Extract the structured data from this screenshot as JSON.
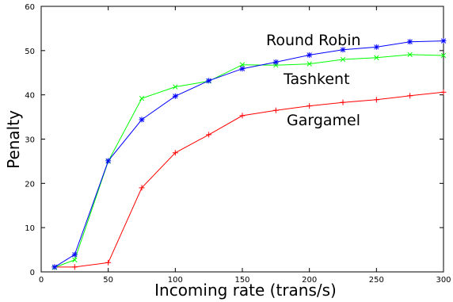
{
  "chart_data": {
    "type": "line",
    "title": "",
    "xlabel": "Incoming rate (trans/s)",
    "ylabel": "Penalty",
    "xlim": [
      0,
      300
    ],
    "ylim": [
      0,
      60
    ],
    "xticks": [
      "0",
      "50",
      "100",
      "150",
      "200",
      "250",
      "300"
    ],
    "yticks": [
      "0",
      "10",
      "20",
      "30",
      "40",
      "50",
      "60"
    ],
    "grid": false,
    "legend": "none",
    "series": [
      {
        "name": "Round Robin",
        "color": "#0000ff",
        "marker": "asterisk",
        "x": [
          10,
          25,
          50,
          75,
          100,
          125,
          150,
          175,
          200,
          225,
          250,
          275,
          300
        ],
        "y": [
          1.1,
          3.9,
          25.1,
          34.4,
          39.7,
          43.2,
          45.9,
          47.4,
          49.0,
          50.2,
          50.8,
          52.0,
          52.2
        ]
      },
      {
        "name": "Tashkent",
        "color": "#00ff00",
        "marker": "x",
        "x": [
          10,
          25,
          50,
          75,
          100,
          125,
          150,
          175,
          200,
          225,
          250,
          275,
          300
        ],
        "y": [
          1.0,
          2.7,
          25.0,
          39.2,
          41.8,
          43.1,
          46.8,
          46.7,
          47.0,
          48.0,
          48.4,
          49.1,
          48.9
        ]
      },
      {
        "name": "Gargamel",
        "color": "#ff0000",
        "marker": "plus",
        "x": [
          10,
          25,
          50,
          75,
          100,
          125,
          150,
          175,
          200,
          225,
          250,
          275,
          300
        ],
        "y": [
          1.1,
          1.1,
          2.1,
          19.0,
          26.9,
          31.0,
          35.3,
          36.5,
          37.5,
          38.3,
          38.9,
          39.8,
          40.6
        ]
      }
    ]
  }
}
